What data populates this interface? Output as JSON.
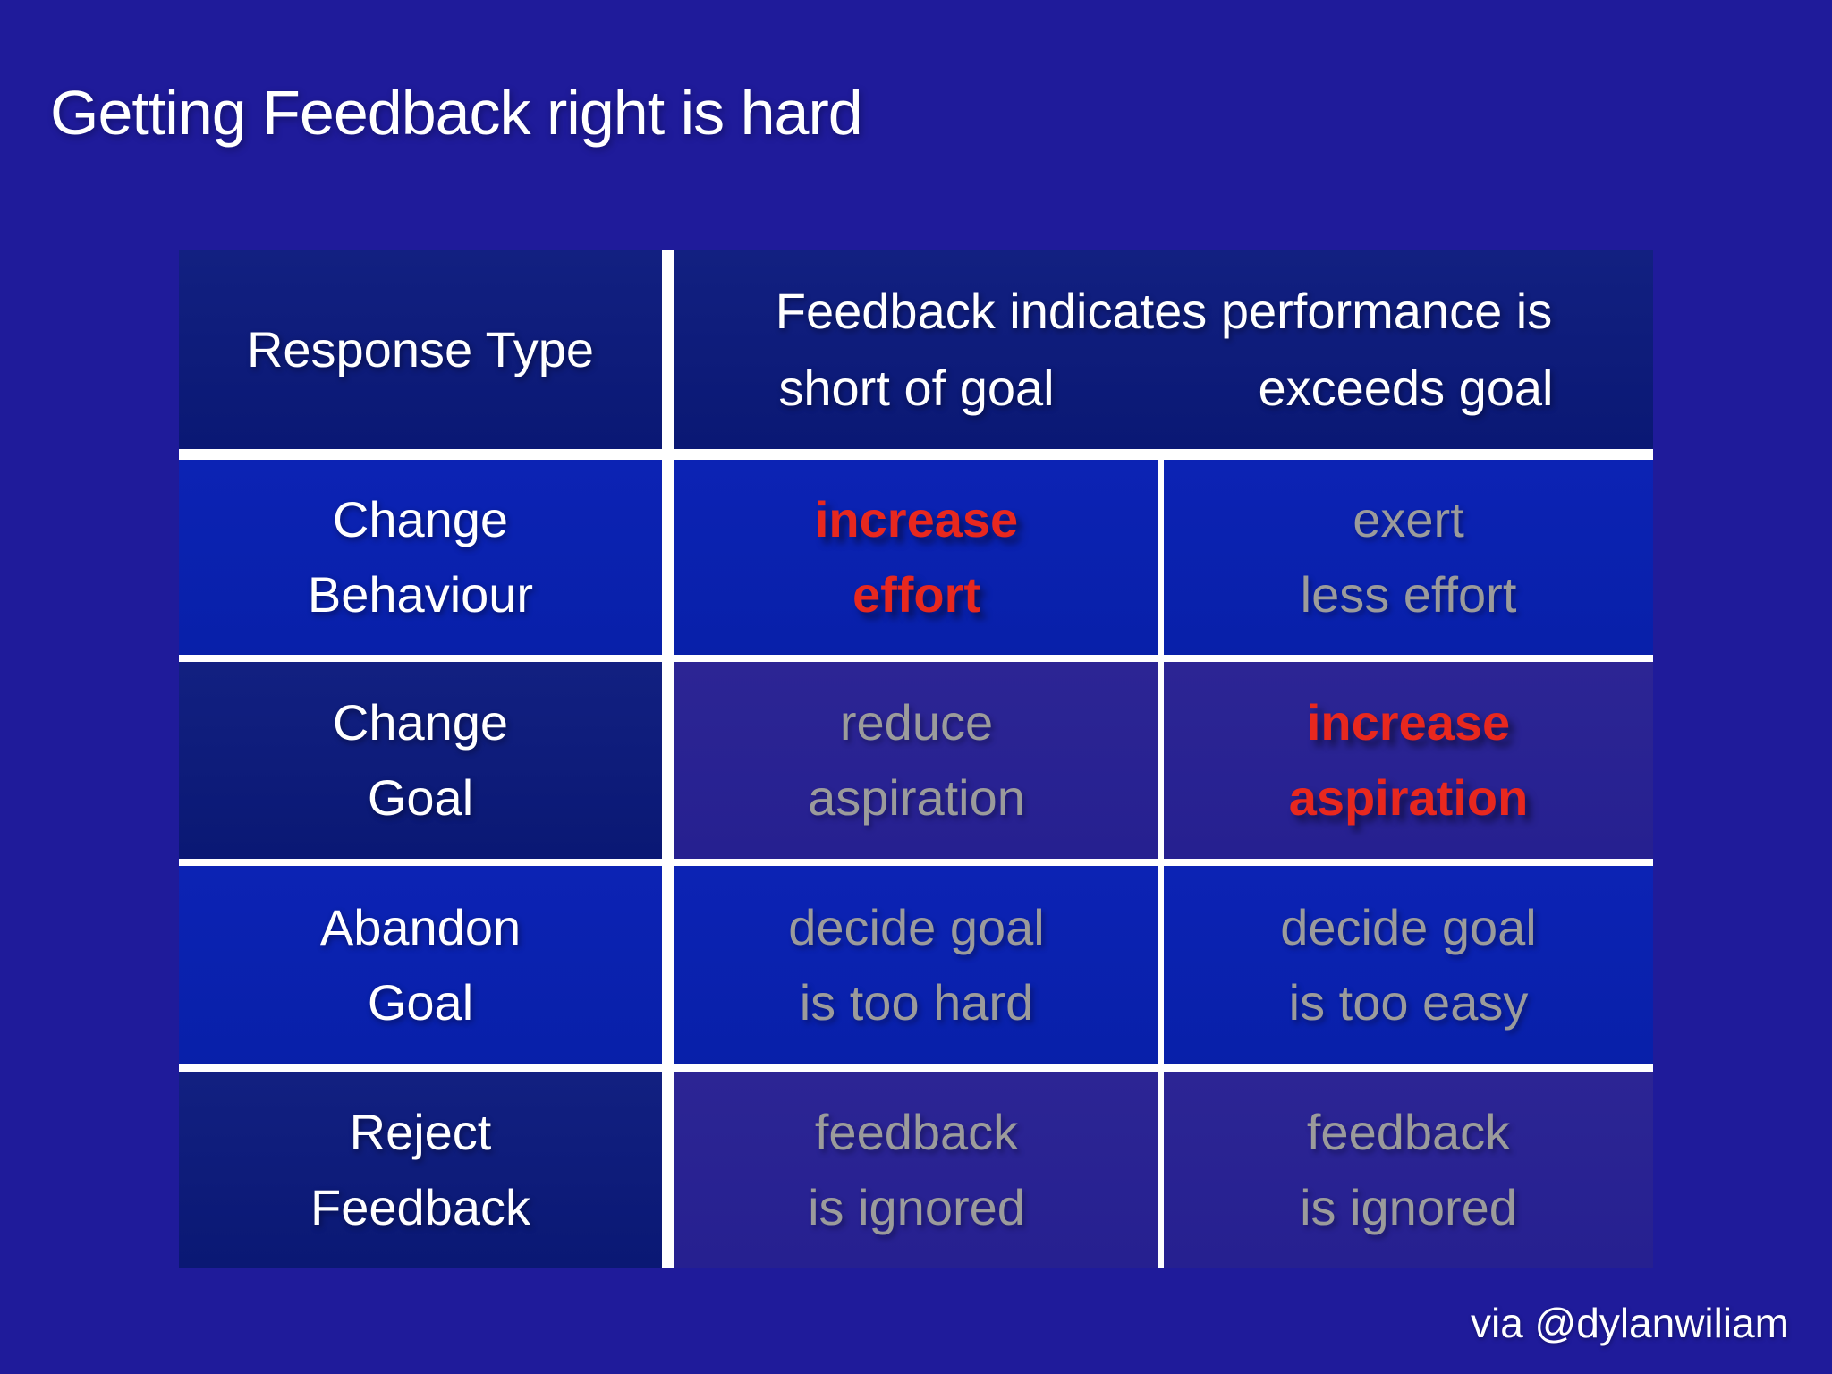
{
  "slide": {
    "title": "Getting Feedback right is hard",
    "credit": "via @dylanwiliam"
  },
  "table": {
    "header": {
      "response_type": "Response Type",
      "feedback_indicates": "Feedback indicates performance is",
      "short_of_goal": "short of goal",
      "exceeds_goal": "exceeds goal"
    },
    "rows": [
      {
        "label": "Change\nBehaviour",
        "short_of_goal": {
          "text": "increase\neffort",
          "style": "red"
        },
        "exceeds_goal": {
          "text": "exert\nless effort",
          "style": "gray"
        }
      },
      {
        "label": "Change\nGoal",
        "short_of_goal": {
          "text": "reduce\naspiration",
          "style": "gray"
        },
        "exceeds_goal": {
          "text": "increase\naspiration",
          "style": "red"
        }
      },
      {
        "label": "Abandon\nGoal",
        "short_of_goal": {
          "text": "decide goal\nis too hard",
          "style": "gray"
        },
        "exceeds_goal": {
          "text": "decide goal\nis too easy",
          "style": "gray"
        }
      },
      {
        "label": "Reject\nFeedback",
        "short_of_goal": {
          "text": "feedback\nis ignored",
          "style": "gray"
        },
        "exceeds_goal": {
          "text": "feedback\nis ignored",
          "style": "gray"
        }
      }
    ]
  },
  "colors": {
    "page_background": "#1F1B9A",
    "header_navy": "#0E1E7B",
    "row_bright_blue": "#0A22AF",
    "row_dark_indigo": "#2A2391",
    "divider": "#FFFFFF",
    "text_white": "#FFFFFF",
    "text_muted_gray": "#9B9B9B",
    "text_emphasis_red": "#E8281E"
  }
}
